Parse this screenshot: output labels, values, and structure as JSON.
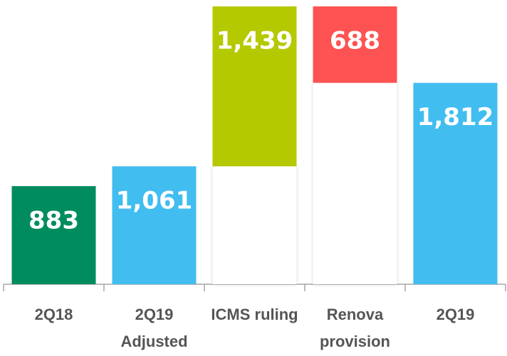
{
  "chart_data": {
    "type": "waterfall",
    "categories": [
      "2Q18",
      "2Q19 Adjusted",
      "ICMS ruling",
      "Renova provision",
      "2Q19"
    ],
    "values": [
      883,
      1061,
      1439,
      -688,
      1812
    ],
    "value_labels": [
      "883",
      "1,061",
      "1,439",
      "688",
      "1,812"
    ],
    "measures": [
      "total",
      "total",
      "relative",
      "relative",
      "total"
    ],
    "colors": [
      "#008c5f",
      "#41bdf0",
      "#b5c900",
      "#ff5252",
      "#41bdf0"
    ]
  }
}
